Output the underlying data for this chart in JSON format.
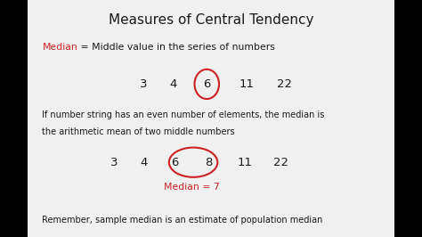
{
  "title": "Measures of Central Tendency",
  "outer_bg": "#000000",
  "inner_bg": "#f0f0f0",
  "text_color_black": "#1a1a1a",
  "text_color_red": "#cc2222",
  "median_label": "Median",
  "median_def": " = Middle value in the series of numbers",
  "row1_numbers": [
    "3",
    "4",
    "6",
    "11",
    "22"
  ],
  "para2_line1": "If number string has an even number of elements, the median is",
  "para2_line2": "the arithmetic mean of two middle numbers",
  "row2_numbers": [
    "3",
    "4",
    "6",
    "8",
    "11",
    "22"
  ],
  "median_eq": "Median = 7",
  "footnote": "Remember, sample median is an estimate of population median"
}
